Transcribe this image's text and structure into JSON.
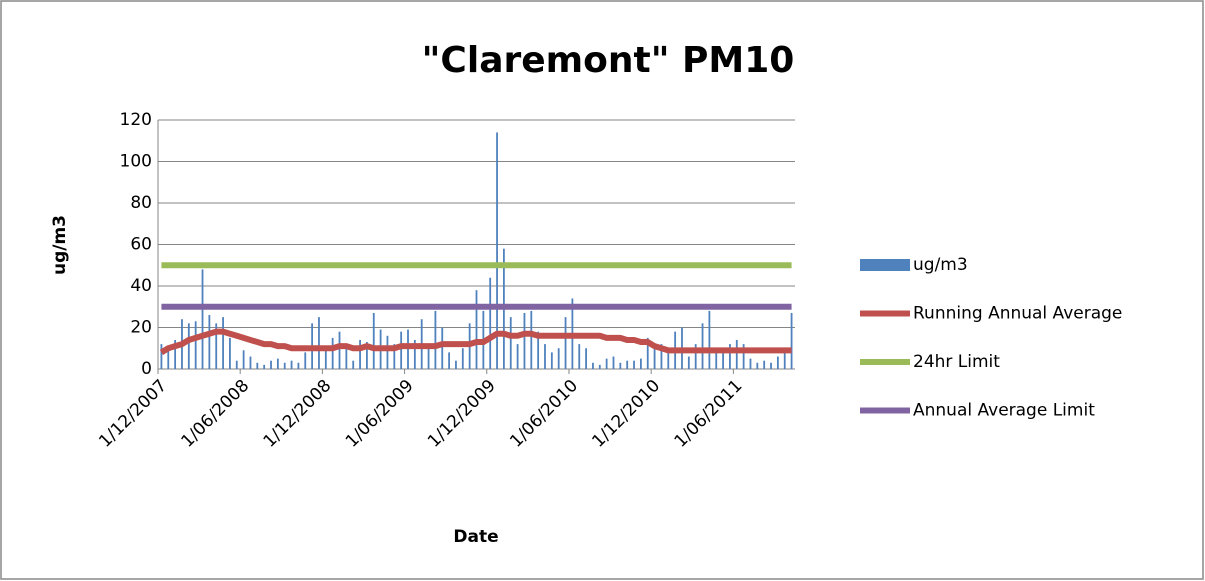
{
  "chart_data": {
    "type": "bar",
    "title": "\"Claremont\" PM10",
    "y_label": "ug/m3",
    "x_label": "Date",
    "categories": [
      "1/12/2007",
      null,
      null,
      null,
      null,
      null,
      null,
      null,
      null,
      null,
      null,
      null,
      "1/06/2008",
      null,
      null,
      null,
      null,
      null,
      null,
      null,
      null,
      null,
      null,
      null,
      "1/12/2008",
      null,
      null,
      null,
      null,
      null,
      null,
      null,
      null,
      null,
      null,
      null,
      "1/06/2009",
      null,
      null,
      null,
      null,
      null,
      null,
      null,
      null,
      null,
      null,
      null,
      "1/12/2009",
      null,
      null,
      null,
      null,
      null,
      null,
      null,
      null,
      null,
      null,
      null,
      "1/06/2010",
      null,
      null,
      null,
      null,
      null,
      null,
      null,
      null,
      null,
      null,
      null,
      "1/12/2010",
      null,
      null,
      null,
      null,
      null,
      null,
      null,
      null,
      null,
      null,
      null,
      "1/06/2011",
      null,
      null,
      null,
      null,
      null,
      null,
      null,
      null
    ],
    "series": [
      {
        "name": "ug/m3",
        "type": "bar",
        "color": "#4f81bd",
        "values": [
          12,
          10,
          14,
          24,
          22,
          23,
          48,
          26,
          22,
          25,
          15,
          4,
          9,
          6,
          3,
          2,
          4,
          5,
          3,
          4,
          3,
          8,
          22,
          25,
          10,
          15,
          18,
          10,
          4,
          14,
          13,
          27,
          19,
          16,
          12,
          18,
          19,
          14,
          24,
          12,
          28,
          20,
          8,
          4,
          10,
          22,
          38,
          28,
          44,
          114,
          58,
          25,
          12,
          27,
          28,
          18,
          12,
          8,
          10,
          25,
          34,
          12,
          10,
          3,
          2,
          5,
          6,
          3,
          4,
          4,
          5,
          15,
          10,
          12,
          8,
          18,
          20,
          6,
          12,
          22,
          28,
          10,
          8,
          12,
          14,
          12,
          5,
          3,
          4,
          3,
          6,
          10,
          27
        ]
      },
      {
        "name": "Running Annual Average",
        "type": "line",
        "color": "#c0504d",
        "values": [
          8,
          10,
          11,
          12,
          14,
          15,
          16,
          17,
          18,
          18,
          17,
          16,
          15,
          14,
          13,
          12,
          12,
          11,
          11,
          10,
          10,
          10,
          10,
          10,
          10,
          10,
          11,
          11,
          10,
          10,
          11,
          10,
          10,
          10,
          10,
          11,
          11,
          11,
          11,
          11,
          11,
          12,
          12,
          12,
          12,
          12,
          13,
          13,
          15,
          17,
          17,
          16,
          16,
          17,
          17,
          16,
          16,
          16,
          16,
          16,
          16,
          16,
          16,
          16,
          16,
          15,
          15,
          15,
          14,
          14,
          13,
          13,
          11,
          10,
          9,
          9,
          9,
          9,
          9,
          9,
          9,
          9,
          9,
          9,
          9,
          9,
          9,
          9,
          9,
          9,
          9,
          9,
          9
        ]
      },
      {
        "name": "24hr Limit",
        "type": "line",
        "color": "#9bbb59",
        "values": [
          50,
          50,
          50,
          50,
          50,
          50,
          50,
          50,
          50,
          50,
          50,
          50,
          50,
          50,
          50,
          50,
          50,
          50,
          50,
          50,
          50,
          50,
          50,
          50,
          50,
          50,
          50,
          50,
          50,
          50,
          50,
          50,
          50,
          50,
          50,
          50,
          50,
          50,
          50,
          50,
          50,
          50,
          50,
          50,
          50,
          50,
          50,
          50,
          50,
          50,
          50,
          50,
          50,
          50,
          50,
          50,
          50,
          50,
          50,
          50,
          50,
          50,
          50,
          50,
          50,
          50,
          50,
          50,
          50,
          50,
          50,
          50,
          50,
          50,
          50,
          50,
          50,
          50,
          50,
          50,
          50,
          50,
          50,
          50,
          50,
          50,
          50,
          50,
          50,
          50,
          50,
          50,
          50
        ]
      },
      {
        "name": "Annual Average Limit",
        "type": "line",
        "color": "#8064a2",
        "values": [
          30,
          30,
          30,
          30,
          30,
          30,
          30,
          30,
          30,
          30,
          30,
          30,
          30,
          30,
          30,
          30,
          30,
          30,
          30,
          30,
          30,
          30,
          30,
          30,
          30,
          30,
          30,
          30,
          30,
          30,
          30,
          30,
          30,
          30,
          30,
          30,
          30,
          30,
          30,
          30,
          30,
          30,
          30,
          30,
          30,
          30,
          30,
          30,
          30,
          30,
          30,
          30,
          30,
          30,
          30,
          30,
          30,
          30,
          30,
          30,
          30,
          30,
          30,
          30,
          30,
          30,
          30,
          30,
          30,
          30,
          30,
          30,
          30,
          30,
          30,
          30,
          30,
          30,
          30,
          30,
          30,
          30,
          30,
          30,
          30,
          30,
          30,
          30,
          30,
          30,
          30,
          30,
          30
        ]
      }
    ],
    "ylim": [
      0,
      120
    ],
    "yticks": [
      0,
      20,
      40,
      60,
      80,
      100,
      120
    ],
    "grid": true,
    "legend": "right"
  }
}
